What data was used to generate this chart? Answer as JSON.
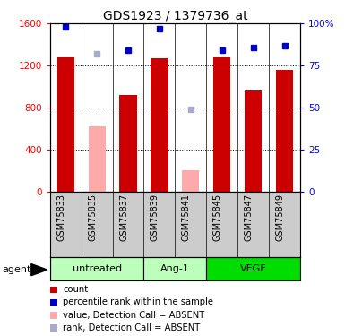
{
  "title": "GDS1923 / 1379736_at",
  "samples": [
    "GSM75833",
    "GSM75835",
    "GSM75837",
    "GSM75839",
    "GSM75841",
    "GSM75845",
    "GSM75847",
    "GSM75849"
  ],
  "bar_values": [
    1280,
    620,
    920,
    1270,
    200,
    1280,
    960,
    1160
  ],
  "bar_absent": [
    false,
    true,
    false,
    false,
    true,
    false,
    false,
    false
  ],
  "rank_values": [
    98,
    82,
    84,
    97,
    49,
    84,
    86,
    87
  ],
  "rank_absent": [
    false,
    true,
    false,
    false,
    true,
    false,
    false,
    false
  ],
  "bar_color_normal": "#cc0000",
  "bar_color_absent": "#ffaaaa",
  "rank_color_normal": "#0000cc",
  "rank_color_absent": "#aaaacc",
  "ylim_left": [
    0,
    1600
  ],
  "ylim_right": [
    0,
    100
  ],
  "yticks_left": [
    0,
    400,
    800,
    1200,
    1600
  ],
  "yticks_right": [
    0,
    25,
    50,
    75,
    100
  ],
  "yticklabels_left": [
    "0",
    "400",
    "800",
    "1200",
    "1600"
  ],
  "yticklabels_right": [
    "0",
    "25",
    "50",
    "75",
    "100%"
  ],
  "group_labels": [
    "untreated",
    "Ang-1",
    "VEGF"
  ],
  "group_ranges": [
    [
      0,
      2
    ],
    [
      3,
      4
    ],
    [
      5,
      7
    ]
  ],
  "group_colors": [
    "#bbffbb",
    "#bbffbb",
    "#00dd00"
  ],
  "agent_label": "agent",
  "legend_items": [
    {
      "color": "#cc0000",
      "label": "count"
    },
    {
      "color": "#0000cc",
      "label": "percentile rank within the sample"
    },
    {
      "color": "#ffaaaa",
      "label": "value, Detection Call = ABSENT"
    },
    {
      "color": "#aaaacc",
      "label": "rank, Detection Call = ABSENT"
    }
  ],
  "bar_width": 0.55,
  "tick_label_area_color": "#cccccc"
}
